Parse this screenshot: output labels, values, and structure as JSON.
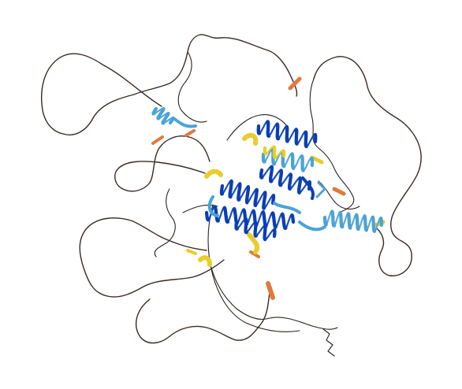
{
  "image": {
    "subject": "protein-structure-cartoon",
    "background": "#ffffff"
  },
  "colors": {
    "very_high": "#0a3fb5",
    "confident": "#4aa3d6",
    "low": "#e8cd2c",
    "very_low": "#e07a3c",
    "coil": "#3a2a22"
  }
}
